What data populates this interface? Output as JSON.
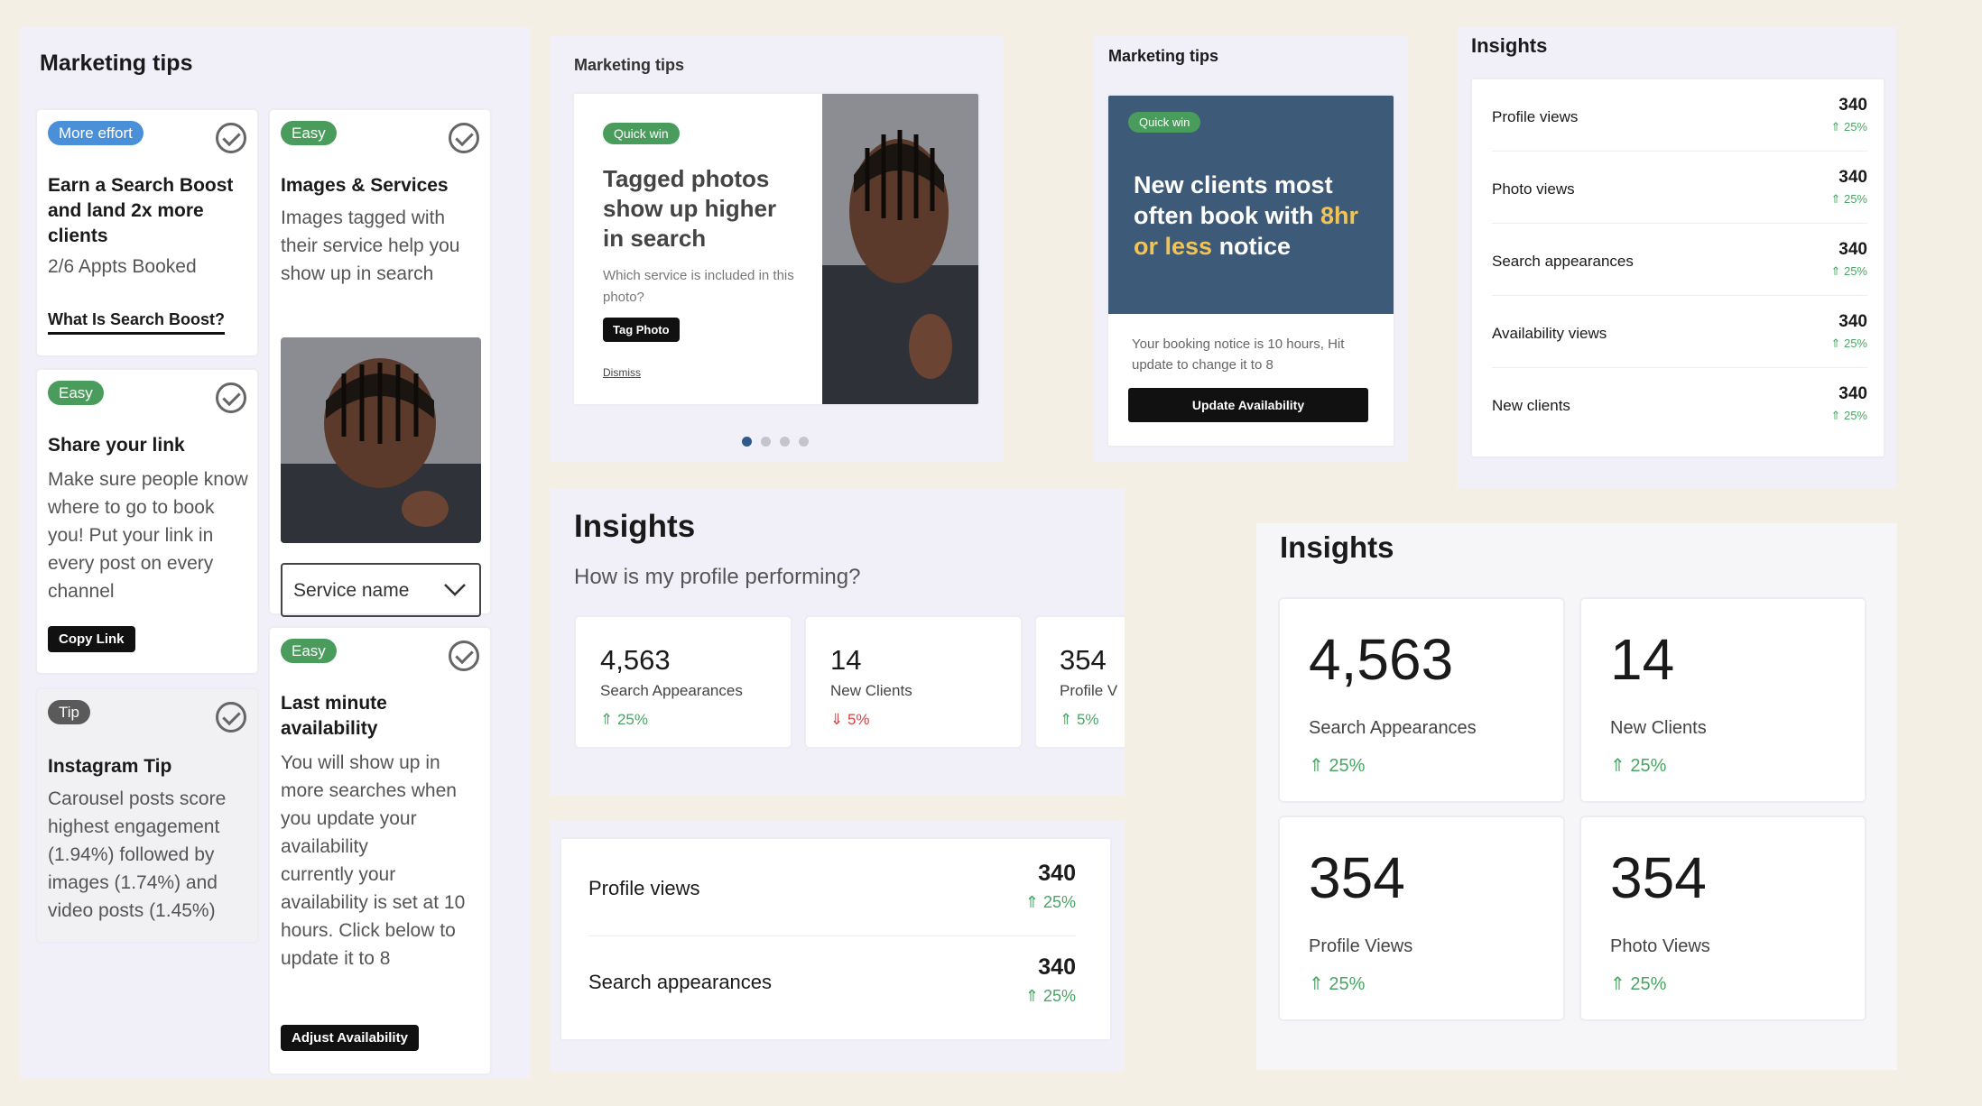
{
  "panel_a": {
    "title": "Marketing tips",
    "card1": {
      "tag": "More effort",
      "title": "Earn a Search Boost and land 2x more clients",
      "subtitle": "2/6 Appts Booked",
      "link": "What Is Search Boost?"
    },
    "card2": {
      "tag": "Easy",
      "title": "Share your link",
      "body": "Make sure people know where to go to book you! Put your link in every post on every channel",
      "button": "Copy Link"
    },
    "card3": {
      "tag": "Tip",
      "title": "Instagram Tip",
      "body": "Carousel posts score highest engagement (1.94%) followed by images (1.74%) and video posts (1.45%)"
    },
    "card4": {
      "tag": "Easy",
      "title": "Images & Services",
      "body": "Images tagged with their service help you show up in search",
      "select_value": "Service name"
    },
    "card5": {
      "tag": "Easy",
      "title": "Last minute availability",
      "body1": "You will show up in more searches when you update your availability",
      "body2": "currently your availability is set at 10 hours. Click below to update it to 8",
      "button": "Adjust Availability"
    }
  },
  "panel_b": {
    "title": "Marketing tips",
    "tag": "Quick win",
    "headline": "Tagged photos show up higher in search",
    "question": "Which service is included in this photo?",
    "button": "Tag Photo",
    "dismiss": "Dismiss",
    "dots": 4,
    "active_dot": 0
  },
  "panel_c": {
    "title": "Marketing tips",
    "tag": "Quick win",
    "headline_a": "New clients most often book with ",
    "headline_highlight": "8hr or less",
    "headline_b": " notice",
    "body": "Your booking notice is 10 hours, Hit update to change it to 8",
    "button": "Update Availability",
    "accent": "#3d5a78",
    "highlight_color": "#f3c454"
  },
  "panel_d": {
    "title": "Insights",
    "rows": [
      {
        "label": "Profile views",
        "value": "340",
        "pct": "25%"
      },
      {
        "label": "Photo views",
        "value": "340",
        "pct": "25%"
      },
      {
        "label": "Search appearances",
        "value": "340",
        "pct": "25%"
      },
      {
        "label": "Availability views",
        "value": "340",
        "pct": "25%"
      },
      {
        "label": "New clients",
        "value": "340",
        "pct": "25%"
      }
    ]
  },
  "panel_e": {
    "title": "Insights",
    "subtitle": "How is my profile performing?",
    "cards": [
      {
        "value": "4,563",
        "label": "Search Appearances",
        "pct": "25%",
        "trend": "up"
      },
      {
        "value": "14",
        "label": "New Clients",
        "pct": "5%",
        "trend": "down"
      },
      {
        "value": "354",
        "label": "Profile V",
        "pct": "5%",
        "trend": "up"
      }
    ]
  },
  "panel_f": {
    "rows": [
      {
        "label": "Profile views",
        "value": "340",
        "pct": "25%"
      },
      {
        "label": "Search appearances",
        "value": "340",
        "pct": "25%"
      }
    ]
  },
  "panel_g": {
    "title": "Insights",
    "cards": [
      {
        "value": "4,563",
        "label": "Search Appearances",
        "pct": "25%"
      },
      {
        "value": "14",
        "label": "New Clients",
        "pct": "25%"
      },
      {
        "value": "354",
        "label": "Profile Views",
        "pct": "25%"
      },
      {
        "value": "354",
        "label": "Photo Views",
        "pct": "25%"
      }
    ]
  }
}
